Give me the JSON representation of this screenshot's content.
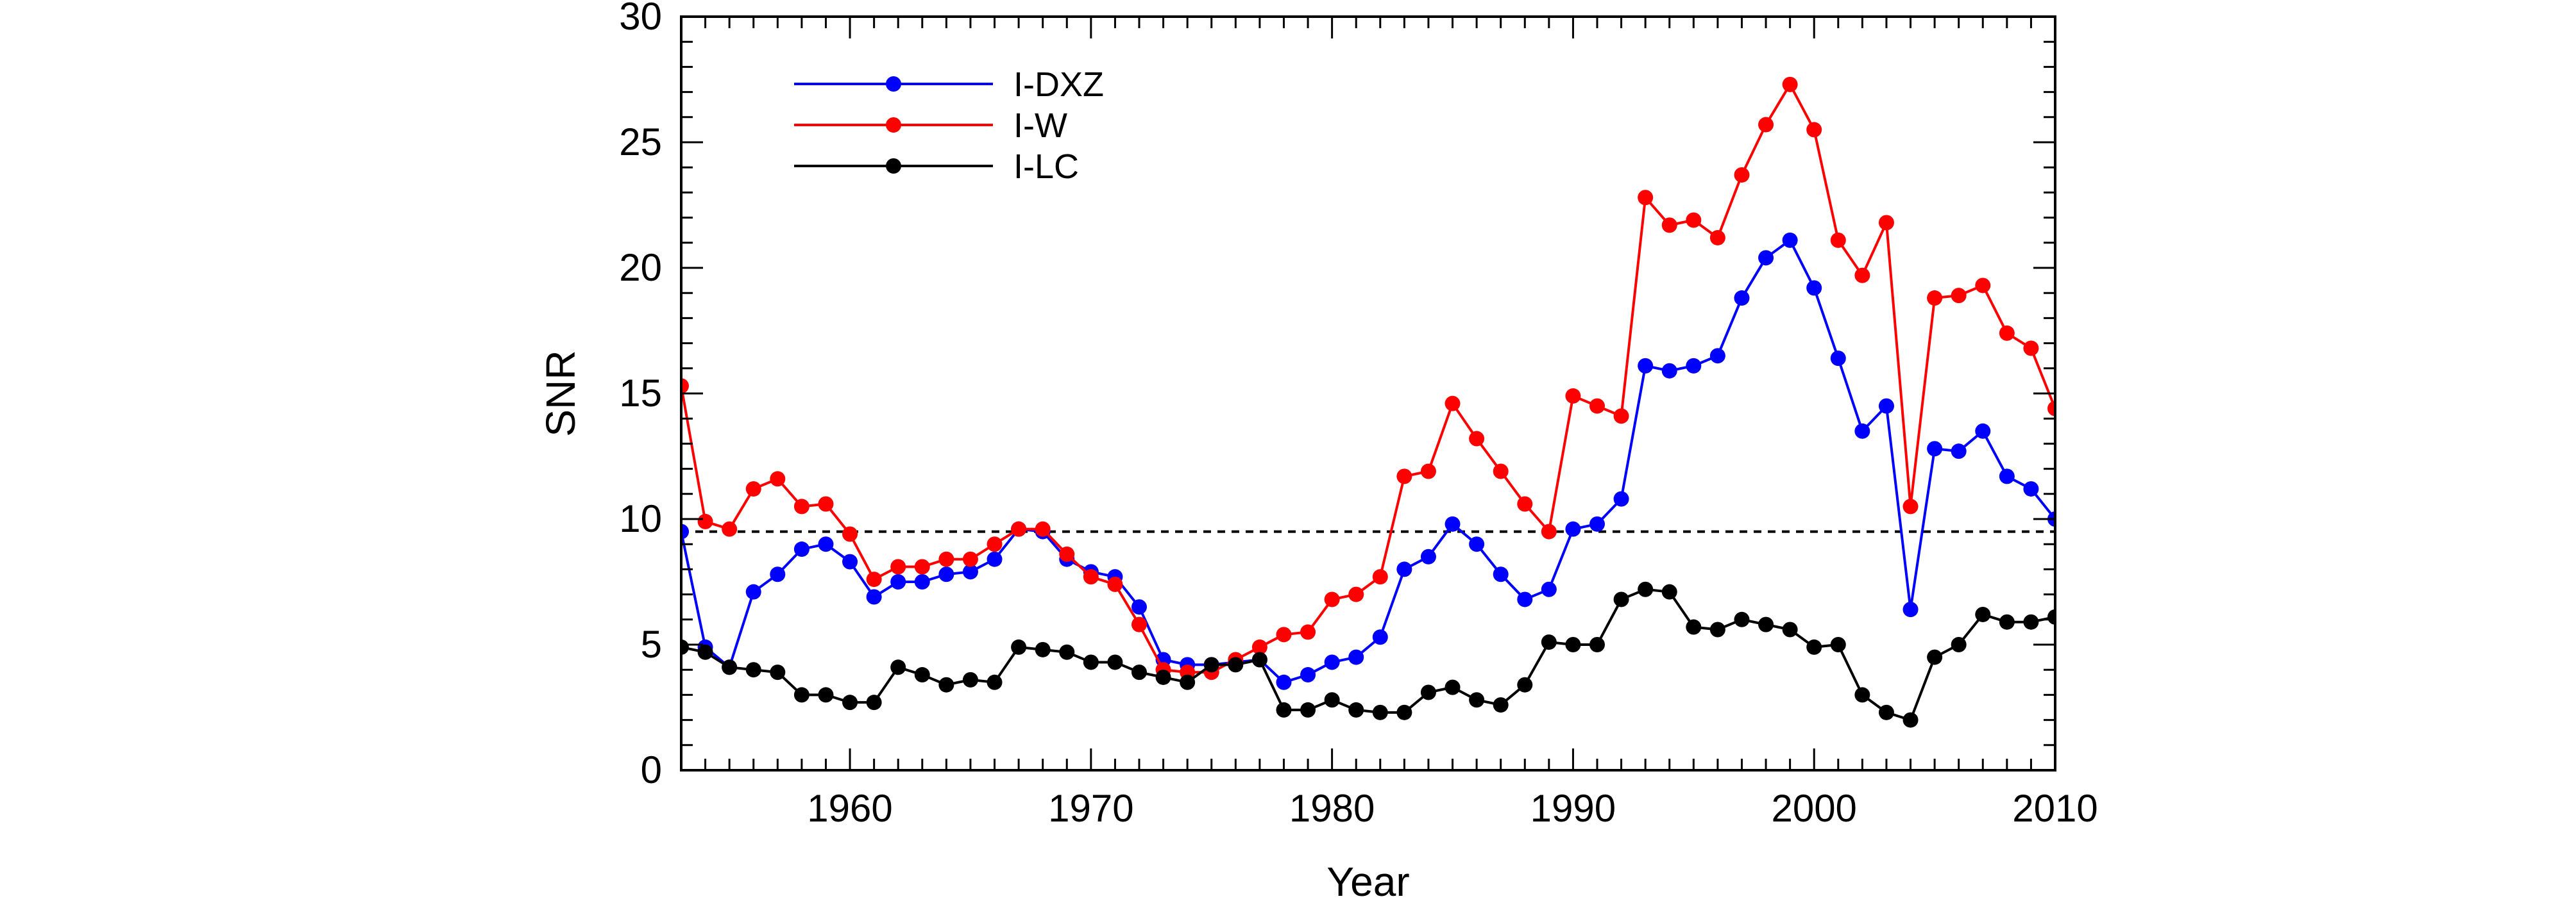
{
  "chart_data": {
    "type": "line",
    "xlabel": "Year",
    "ylabel": "SNR",
    "xlim": [
      1953,
      2010
    ],
    "ylim": [
      0,
      30
    ],
    "xticks": [
      1960,
      1970,
      1980,
      1990,
      2000,
      2010
    ],
    "yticks": [
      0,
      5,
      10,
      15,
      20,
      25,
      30
    ],
    "x_minor_step": 1,
    "y_minor_step": 1,
    "grid": false,
    "legend_position": "top-left",
    "reference_line": {
      "y": 9.5,
      "style": "dashed",
      "color": "#000000"
    },
    "x": [
      1953,
      1954,
      1955,
      1956,
      1957,
      1958,
      1959,
      1960,
      1961,
      1962,
      1963,
      1964,
      1965,
      1966,
      1967,
      1968,
      1969,
      1970,
      1971,
      1972,
      1973,
      1974,
      1975,
      1976,
      1977,
      1978,
      1979,
      1980,
      1981,
      1982,
      1983,
      1984,
      1985,
      1986,
      1987,
      1988,
      1989,
      1990,
      1991,
      1992,
      1993,
      1994,
      1995,
      1996,
      1997,
      1998,
      1999,
      2000,
      2001,
      2002,
      2003,
      2004,
      2005,
      2006,
      2007,
      2008,
      2009,
      2010
    ],
    "series": [
      {
        "name": "I-DXZ",
        "color": "#0000ff",
        "values": [
          9.5,
          4.9,
          4.1,
          7.1,
          7.8,
          8.8,
          9.0,
          8.3,
          6.9,
          7.5,
          7.5,
          7.8,
          7.9,
          8.4,
          9.6,
          9.5,
          8.4,
          7.9,
          7.7,
          6.5,
          4.4,
          4.2,
          4.2,
          4.3,
          4.4,
          3.5,
          3.8,
          4.3,
          4.5,
          5.3,
          8.0,
          8.5,
          9.8,
          9.0,
          7.8,
          6.8,
          7.2,
          9.6,
          9.8,
          10.8,
          16.1,
          15.9,
          16.1,
          16.5,
          18.8,
          20.4,
          21.1,
          19.2,
          16.4,
          13.5,
          14.5,
          6.4,
          12.8,
          12.7,
          13.5,
          11.7,
          11.2,
          10.0
        ]
      },
      {
        "name": "I-W",
        "color": "#ff0000",
        "values": [
          15.3,
          9.9,
          9.6,
          11.2,
          11.6,
          10.5,
          10.6,
          9.4,
          7.6,
          8.1,
          8.1,
          8.4,
          8.4,
          9.0,
          9.6,
          9.6,
          8.6,
          7.7,
          7.4,
          5.8,
          4.0,
          3.9,
          3.9,
          4.4,
          4.9,
          5.4,
          5.5,
          6.8,
          7.0,
          7.7,
          11.7,
          11.9,
          14.6,
          13.2,
          11.9,
          10.6,
          9.5,
          14.9,
          14.5,
          14.1,
          22.8,
          21.7,
          21.9,
          21.2,
          23.7,
          25.7,
          27.3,
          25.5,
          21.1,
          19.7,
          21.8,
          10.5,
          18.8,
          18.9,
          19.3,
          17.4,
          16.8,
          14.4
        ]
      },
      {
        "name": "I-LC",
        "color": "#000000",
        "values": [
          4.9,
          4.7,
          4.1,
          4.0,
          3.9,
          3.0,
          3.0,
          2.7,
          2.7,
          4.1,
          3.8,
          3.4,
          3.6,
          3.5,
          4.9,
          4.8,
          4.7,
          4.3,
          4.3,
          3.9,
          3.7,
          3.5,
          4.2,
          4.2,
          4.4,
          2.4,
          2.4,
          2.8,
          2.4,
          2.3,
          2.3,
          3.1,
          3.3,
          2.8,
          2.6,
          3.4,
          5.1,
          5.0,
          5.0,
          6.8,
          7.2,
          7.1,
          5.7,
          5.6,
          6.0,
          5.8,
          5.6,
          4.9,
          5.0,
          3.0,
          2.3,
          2.0,
          4.5,
          5.0,
          6.2,
          5.9,
          5.9,
          6.1
        ]
      }
    ]
  }
}
